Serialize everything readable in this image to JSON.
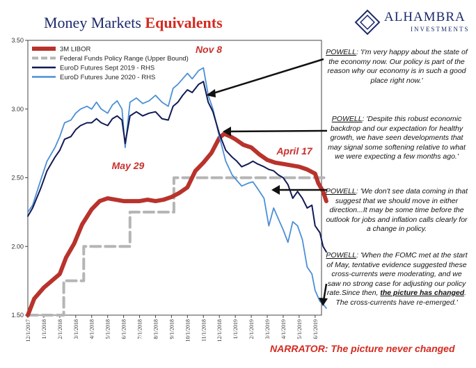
{
  "title": {
    "part1": "Money Markets ",
    "part2": "Equivalents"
  },
  "logo": {
    "brand": "ALHAMBRA",
    "sub": "INVESTMENTS"
  },
  "chart_data": {
    "type": "line",
    "ylim": [
      1.5,
      3.5
    ],
    "yticks": [
      "3.50",
      "3.00",
      "2.50",
      "2.00",
      "1.50"
    ],
    "x_tick_labels": [
      "12/1/2017",
      "1/1/2018",
      "2/1/2018",
      "3/1/2018",
      "4/1/2018",
      "5/1/2018",
      "6/1/2018",
      "7/1/2018",
      "8/1/2018",
      "9/1/2018",
      "10/1/2018",
      "11/1/2018",
      "12/1/2018",
      "1/1/2019",
      "2/1/2019",
      "3/1/2019",
      "4/1/2019",
      "5/1/2019",
      "6/1/2019"
    ],
    "legend": [
      "3M LIBOR",
      "Federal Funds Policy Range (Upper Bound)",
      "EuroD Futures Sept 2019 - RHS",
      "EuroD Futures June 2020 - RHS"
    ],
    "legend_position": "top-left",
    "colors": {
      "libor": "#b8332c",
      "fed": "#b5b5b5",
      "sep19": "#111a55",
      "jun20": "#4b8fd6"
    },
    "series": [
      {
        "name": "3M LIBOR",
        "x": [
          0,
          0.4,
          1,
          1.4,
          2,
          2.4,
          2.9,
          3.4,
          4,
          4.5,
          5,
          6,
          7,
          7.5,
          8,
          8.5,
          9,
          9.5,
          10,
          10.5,
          11,
          11.5,
          12,
          12.3,
          12.7,
          13,
          13.5,
          14,
          14.5,
          15,
          15.5,
          16,
          16.5,
          17,
          17.5,
          18,
          18.2,
          18.5,
          18.7
        ],
        "values": [
          1.5,
          1.62,
          1.7,
          1.74,
          1.8,
          1.92,
          2.02,
          2.16,
          2.27,
          2.33,
          2.35,
          2.33,
          2.33,
          2.34,
          2.33,
          2.34,
          2.36,
          2.39,
          2.43,
          2.55,
          2.61,
          2.68,
          2.79,
          2.82,
          2.8,
          2.78,
          2.74,
          2.72,
          2.67,
          2.63,
          2.61,
          2.6,
          2.59,
          2.58,
          2.56,
          2.53,
          2.46,
          2.4,
          2.33
        ]
      },
      {
        "name": "Federal Funds Policy Range (Upper Bound)",
        "x": [
          0,
          2.25,
          2.25,
          3.5,
          3.5,
          6.4,
          6.4,
          9.15,
          9.15,
          12.25,
          12.25,
          18.8
        ],
        "values": [
          1.5,
          1.5,
          1.75,
          1.75,
          2.0,
          2.0,
          2.25,
          2.25,
          2.5,
          2.5,
          2.5,
          2.5
        ]
      },
      {
        "name": "EuroD Futures Sept 2019 - RHS",
        "x": [
          0,
          0.3,
          0.8,
          1.2,
          1.7,
          2,
          2.3,
          2.7,
          3,
          3.3,
          3.7,
          4,
          4.3,
          4.6,
          5,
          5.3,
          5.6,
          5.9,
          6.1,
          6.4,
          6.8,
          7.2,
          7.6,
          8,
          8.4,
          8.8,
          9.1,
          9.4,
          9.7,
          10,
          10.3,
          10.7,
          11,
          11.3,
          11.6,
          12,
          12.4,
          12.8,
          13.1,
          13.4,
          13.8,
          14.1,
          14.4,
          14.8,
          15.1,
          15.4,
          15.7,
          16,
          16.3,
          16.6,
          16.9,
          17.2,
          17.5,
          17.8,
          18,
          18.3,
          18.5,
          18.7
        ],
        "values": [
          2.22,
          2.28,
          2.42,
          2.55,
          2.65,
          2.7,
          2.78,
          2.8,
          2.85,
          2.88,
          2.9,
          2.9,
          2.93,
          2.9,
          2.88,
          2.93,
          2.95,
          2.92,
          2.75,
          2.95,
          2.98,
          2.95,
          2.97,
          2.98,
          2.93,
          2.92,
          3.02,
          3.05,
          3.1,
          3.14,
          3.12,
          3.18,
          3.2,
          3.05,
          2.98,
          2.82,
          2.7,
          2.65,
          2.62,
          2.58,
          2.6,
          2.62,
          2.6,
          2.58,
          2.56,
          2.55,
          2.52,
          2.5,
          2.45,
          2.35,
          2.4,
          2.35,
          2.28,
          2.3,
          2.15,
          2.1,
          2.0,
          1.96
        ]
      },
      {
        "name": "EuroD Futures June 2020 - RHS",
        "x": [
          0,
          0.3,
          0.8,
          1.2,
          1.7,
          2,
          2.3,
          2.7,
          3,
          3.3,
          3.7,
          4,
          4.3,
          4.6,
          5,
          5.3,
          5.6,
          5.9,
          6.1,
          6.4,
          6.8,
          7.2,
          7.6,
          8,
          8.4,
          8.8,
          9.1,
          9.4,
          9.7,
          10,
          10.3,
          10.7,
          11,
          11.3,
          11.6,
          12,
          12.4,
          12.8,
          13.1,
          13.4,
          13.8,
          14.1,
          14.4,
          14.8,
          15.1,
          15.4,
          15.7,
          16,
          16.3,
          16.6,
          16.9,
          17.2,
          17.5,
          17.8,
          18,
          18.3,
          18.5,
          18.7
        ],
        "values": [
          2.25,
          2.3,
          2.48,
          2.62,
          2.72,
          2.8,
          2.9,
          2.92,
          2.97,
          3.0,
          3.02,
          3.0,
          3.05,
          3.0,
          2.97,
          3.03,
          3.06,
          3.0,
          2.72,
          3.05,
          3.08,
          3.04,
          3.06,
          3.1,
          3.05,
          3.02,
          3.15,
          3.18,
          3.22,
          3.26,
          3.22,
          3.28,
          3.3,
          3.1,
          3.0,
          2.8,
          2.62,
          2.52,
          2.48,
          2.44,
          2.46,
          2.47,
          2.42,
          2.35,
          2.15,
          2.28,
          2.2,
          2.12,
          2.03,
          2.18,
          2.15,
          2.05,
          1.85,
          1.8,
          1.68,
          1.6,
          1.58,
          1.55
        ]
      }
    ],
    "labels": [
      {
        "text": "Nov 8"
      },
      {
        "text": "May 29"
      },
      {
        "text": "April 17"
      }
    ]
  },
  "annotations": {
    "powell1_prefix": "POWELL",
    "powell1": ": 'I'm very happy about the state of the economy now. Our policy is part of the reason why our economy is in such a good place right now.'",
    "powell2_prefix": "POWELL",
    "powell2": ": 'Despite this robust economic backdrop and our expectation for healthy growth, we have seen developments that may signal some softening relative to what we were expecting a few months ago.'",
    "powell3_prefix": "POWELL",
    "powell3": ": 'We don't see data coming in that suggest that we should move in either direction...It may be some time before the outlook for jobs and inflation calls clearly for a change in policy.",
    "powell4_prefix": "POWELL",
    "powell4_a": ": 'When the FOMC met at the start of May, tentative evidence suggested these cross-currents were moderating, and we saw no strong case for adjusting our policy rate.Since then, ",
    "powell4_b": "the picture has changed",
    "powell4_c": ". The cross-currents have re-emerged.'",
    "narrator": "NARRATOR: The picture never changed"
  }
}
